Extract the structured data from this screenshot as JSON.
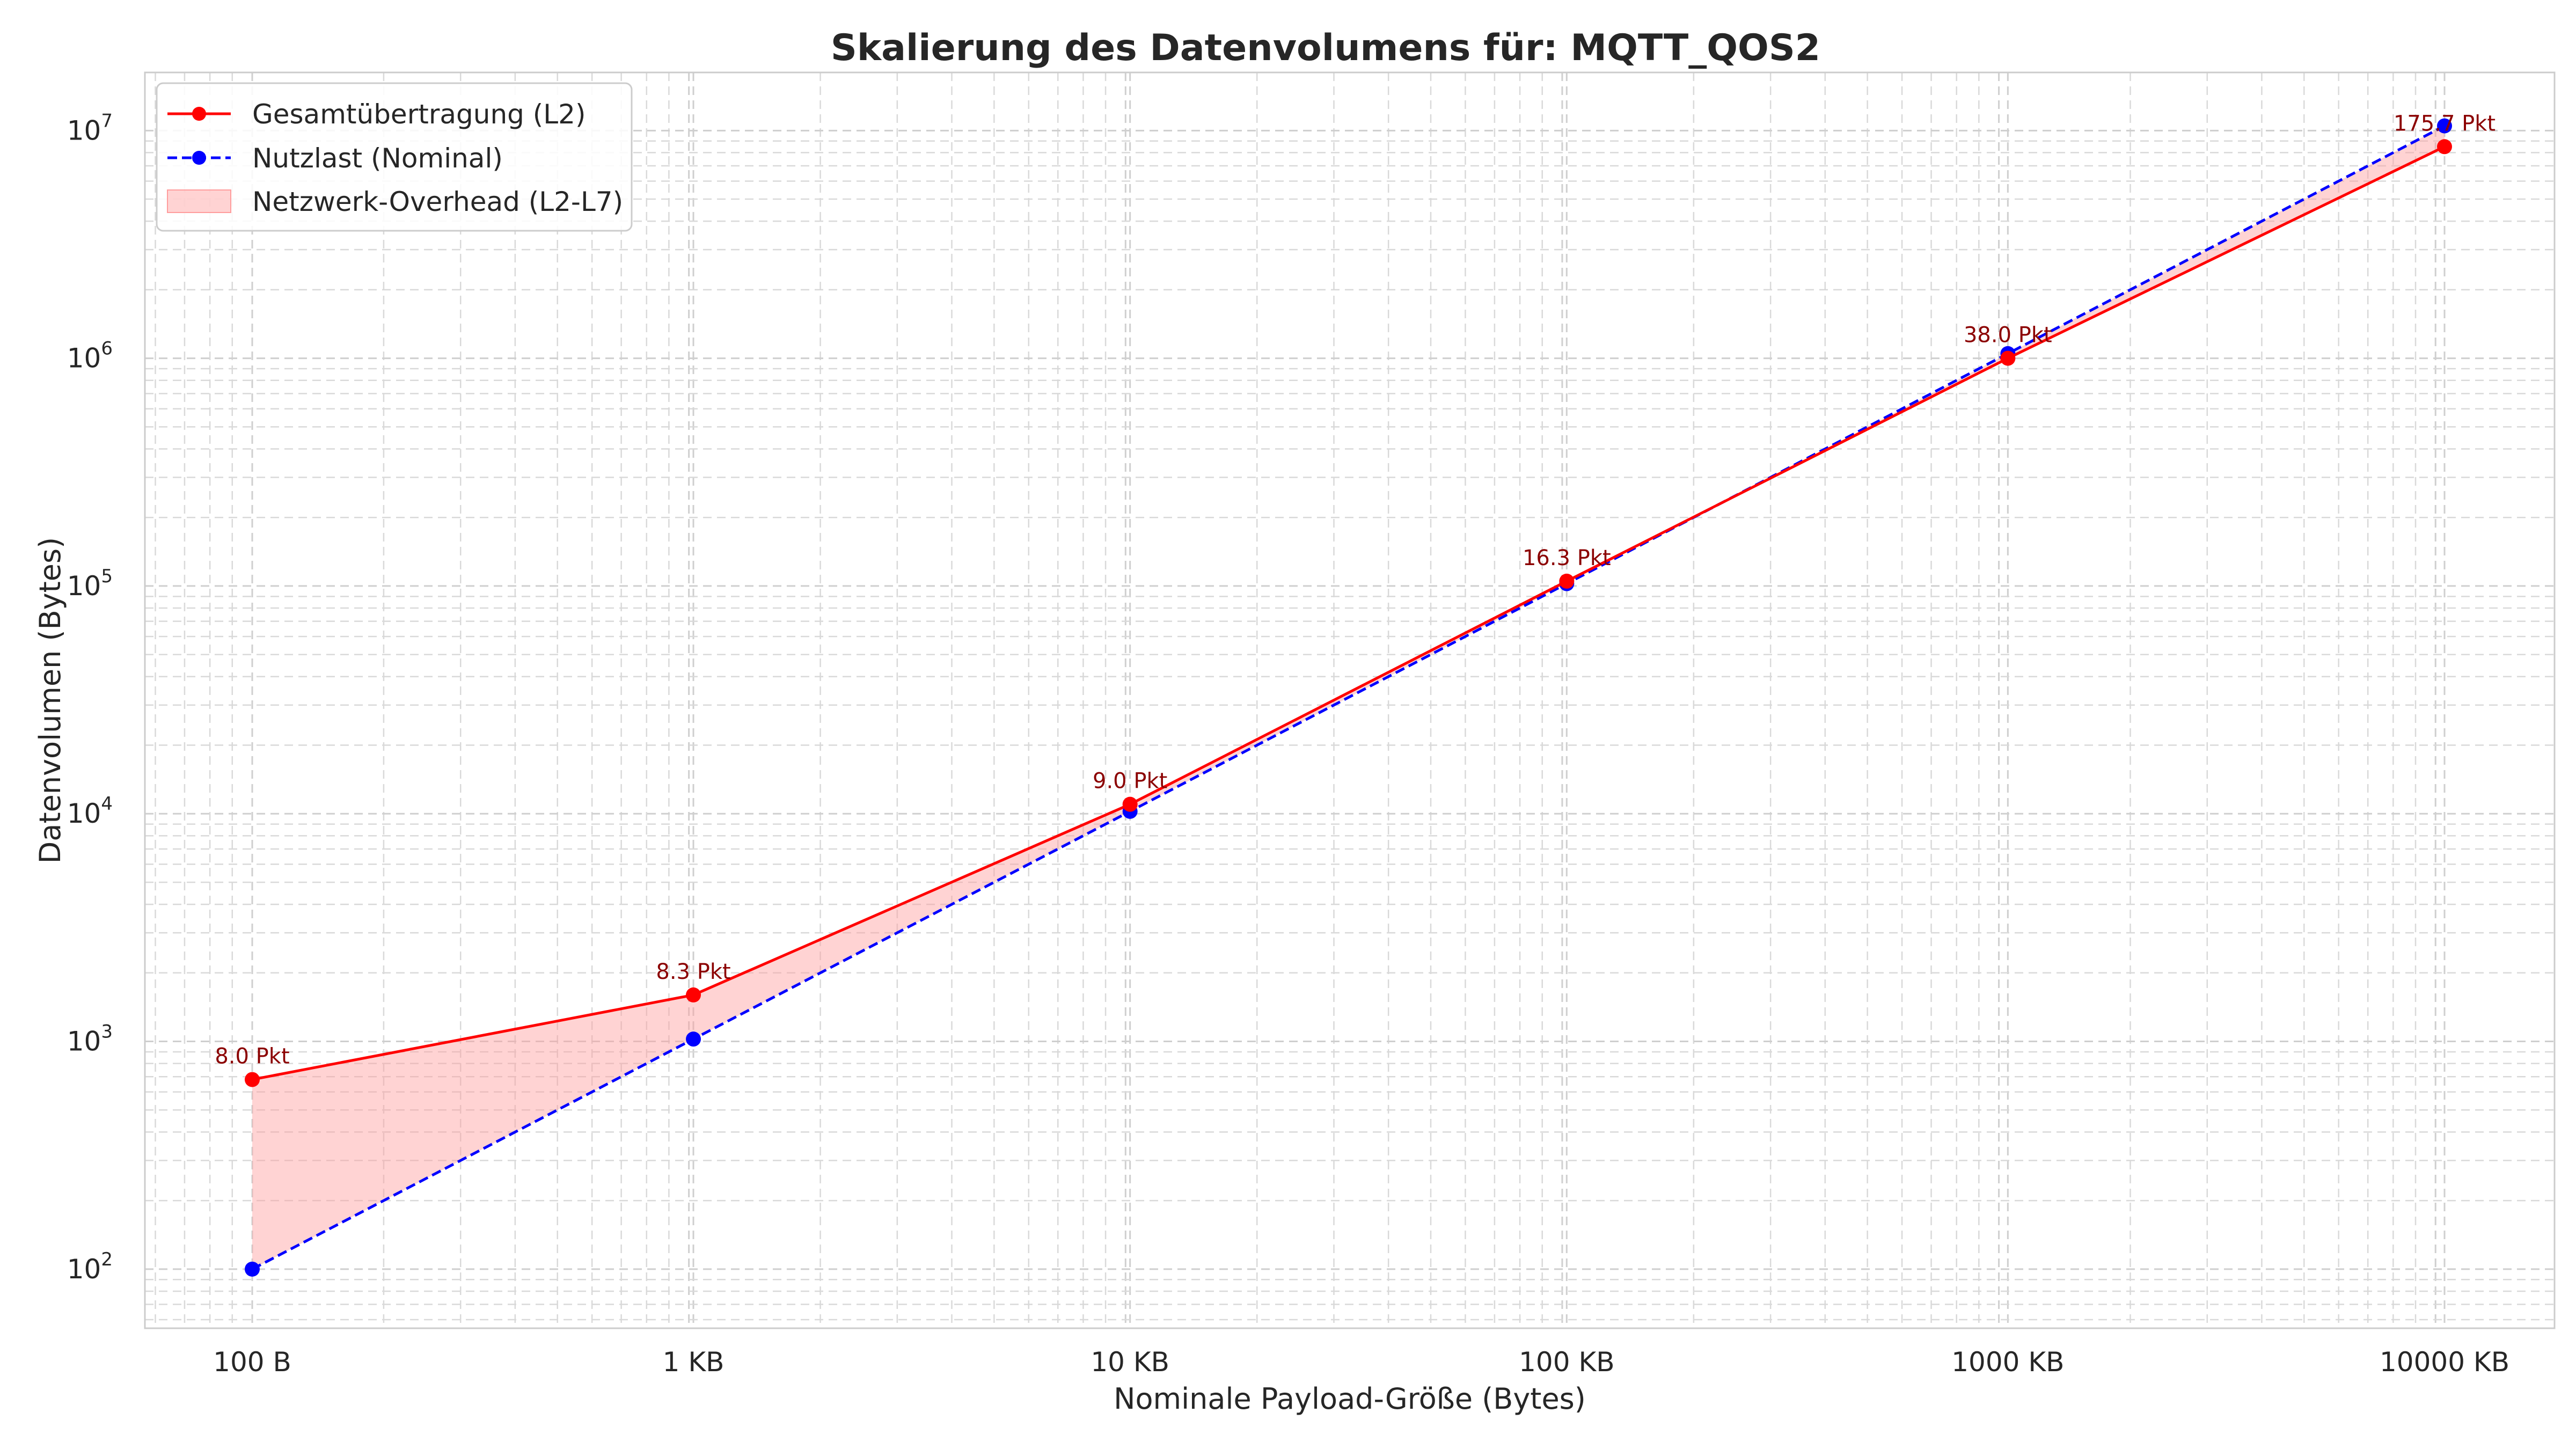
{
  "chart_data": {
    "type": "line",
    "title": "Skalierung des Datenvolumens für: MQTT_QOS2",
    "xlabel": "Nominale Payload-Größe (Bytes)",
    "ylabel": "Datenvolumen (Bytes)",
    "x_scale": "log",
    "y_scale": "log",
    "grid": true,
    "legend_position": "top-left",
    "x": [
      100,
      1024,
      10240,
      102400,
      1048576,
      10485760
    ],
    "xtick_labels": [
      "100 B",
      "1 KB",
      "10 KB",
      "100 KB",
      "1000 KB",
      "10000 KB"
    ],
    "ytick_labels": [
      "10^2",
      "10^3",
      "10^4",
      "10^5",
      "10^6",
      "10^7"
    ],
    "ylim": [
      55,
      18000000
    ],
    "series": [
      {
        "name": "Gesamtübertragung (L2)",
        "values": [
          680,
          1600,
          11000,
          105000,
          1000000,
          8500000
        ],
        "color": "#ff0000",
        "line_style": "solid",
        "marker": "circle"
      },
      {
        "name": "Nutzlast (Nominal)",
        "values": [
          100,
          1024,
          10240,
          102400,
          1048576,
          10485760
        ],
        "color": "#0000ff",
        "line_style": "dashed",
        "marker": "circle"
      }
    ],
    "fill": {
      "name": "Netzwerk-Overhead (L2-L7)",
      "color": "#ff9d9d"
    },
    "annotations": [
      "8.0 Pkt",
      "8.3 Pkt",
      "9.0 Pkt",
      "16.3 Pkt",
      "38.0 Pkt",
      "175.7 Pkt"
    ],
    "annotation_color": "#8b0000"
  }
}
